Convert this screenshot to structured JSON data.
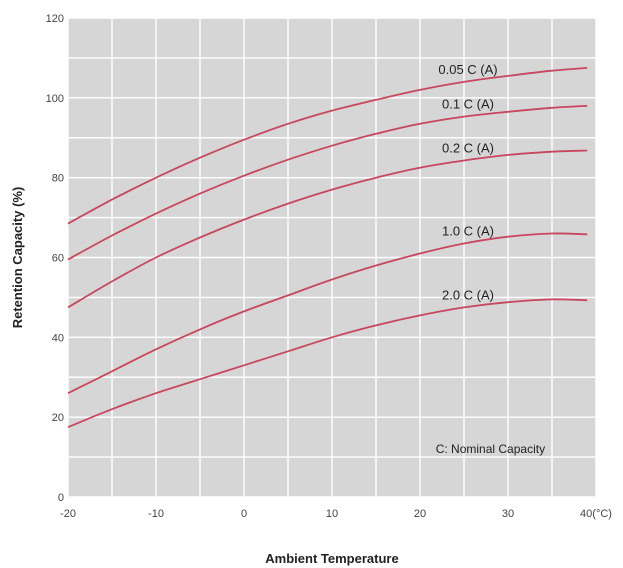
{
  "chart_data": {
    "type": "line",
    "title": "",
    "xlabel": "Ambient Temperature",
    "ylabel": "Retention Capacity (%)",
    "xlim": [
      -20,
      40
    ],
    "ylim": [
      0,
      120
    ],
    "x_ticks": [
      -20,
      -10,
      0,
      10,
      20,
      30,
      40
    ],
    "x_tick_labels": [
      "-20",
      "-10",
      "0",
      "10",
      "20",
      "30",
      "40(°C)"
    ],
    "y_ticks": [
      0,
      20,
      40,
      60,
      80,
      100,
      120
    ],
    "y_tick_labels": [
      "0",
      "20",
      "40",
      "60",
      "80",
      "100",
      "120"
    ],
    "grid": true,
    "legend": "none",
    "annotation": "C: Nominal Capacity",
    "colors": {
      "plot_background": "#d6d6d6",
      "grid": "#ffffff",
      "line": "#c8475e"
    },
    "series": [
      {
        "name": "0.05 C (A)",
        "x": [
          -20,
          -15,
          -10,
          -5,
          0,
          5,
          10,
          15,
          20,
          25,
          30,
          35,
          39
        ],
        "values": [
          68.5,
          74.5,
          80,
          85,
          89.5,
          93.5,
          96.8,
          99.5,
          102,
          104,
          105.5,
          106.8,
          107.5
        ]
      },
      {
        "name": "0.1 C (A)",
        "x": [
          -20,
          -15,
          -10,
          -5,
          0,
          5,
          10,
          15,
          20,
          25,
          30,
          35,
          39
        ],
        "values": [
          59.5,
          65.5,
          71,
          76,
          80.5,
          84.5,
          88,
          91,
          93.5,
          95.3,
          96.5,
          97.5,
          98
        ]
      },
      {
        "name": "0.2 C (A)",
        "x": [
          -20,
          -15,
          -10,
          -5,
          0,
          5,
          10,
          15,
          20,
          25,
          30,
          35,
          39
        ],
        "values": [
          47.5,
          54,
          60,
          65,
          69.5,
          73.5,
          77,
          80,
          82.5,
          84.3,
          85.7,
          86.5,
          86.8
        ]
      },
      {
        "name": "1.0 C (A)",
        "x": [
          -20,
          -15,
          -10,
          -5,
          0,
          5,
          10,
          15,
          20,
          25,
          30,
          35,
          39
        ],
        "values": [
          26,
          31.5,
          37,
          42,
          46.5,
          50.5,
          54.5,
          58,
          61,
          63.5,
          65.2,
          66,
          65.8
        ]
      },
      {
        "name": "2.0 C (A)",
        "x": [
          -20,
          -15,
          -10,
          -5,
          0,
          5,
          10,
          15,
          20,
          25,
          30,
          35,
          39
        ],
        "values": [
          17.5,
          22,
          26,
          29.5,
          33,
          36.5,
          40,
          43,
          45.5,
          47.5,
          48.8,
          49.5,
          49.3
        ]
      }
    ]
  }
}
